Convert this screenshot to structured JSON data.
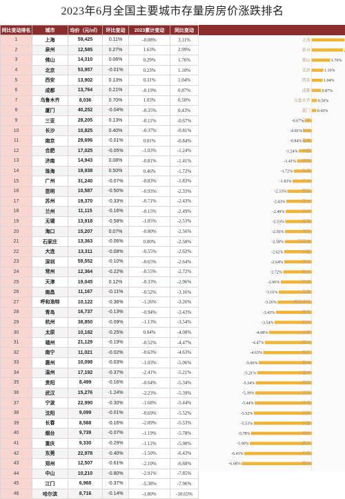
{
  "title": "2023年6月全国主要城市存量房房价涨跌排名",
  "columns": [
    "同比变动排名",
    "城市",
    "均价（元/㎡）",
    "环比变动",
    "2023累计变动",
    "同比变动"
  ],
  "colors": {
    "header_bg": "#8b2d2d",
    "rank_bg": "#f9d6cf",
    "bar": "#f2b233"
  },
  "chart_data": {
    "type": "bar",
    "orientation": "horizontal",
    "title": "2023年6月全国主要城市存量房房价涨跌排名",
    "xlabel": "",
    "ylabel": "",
    "xlim": [
      -10.65,
      3.11
    ],
    "categories": [
      "上海",
      "泉州",
      "佛山",
      "北京",
      "西安",
      "成都",
      "乌鲁木齐",
      "厦门",
      "三亚",
      "长沙",
      "南京",
      "合肥",
      "济南",
      "珠海",
      "广州",
      "昆明",
      "苏州",
      "兰州",
      "无锡",
      "海口",
      "石家庄",
      "大连",
      "深圳",
      "常州",
      "天津",
      "南昌",
      "呼和浩特",
      "青岛",
      "杭州",
      "太原",
      "福州",
      "南宁",
      "惠州",
      "温州",
      "贵阳",
      "武汉",
      "宁波",
      "沈阳",
      "长春",
      "烟台",
      "重庆",
      "东莞",
      "郑州",
      "中山",
      "江门",
      "哈尔滨"
    ],
    "values": [
      3.11,
      2.99,
      1.76,
      1.1,
      1.04,
      0.87,
      0.5,
      0.43,
      -0.67,
      -0.81,
      -0.84,
      -1.24,
      -1.41,
      -1.72,
      -1.83,
      -2.33,
      -2.43,
      -2.49,
      -2.53,
      -2.56,
      -2.58,
      -2.62,
      -2.64,
      -2.72,
      -2.96,
      -3.16,
      -3.26,
      -3.43,
      -3.54,
      -4.08,
      -4.47,
      -4.63,
      -5.06,
      -5.21,
      -5.34,
      -5.39,
      -5.44,
      -5.52,
      -5.53,
      -5.78,
      -5.9,
      -6.43,
      -6.68,
      -7.85,
      -7.96,
      -10.65
    ]
  },
  "rows": [
    {
      "rank": "1",
      "city": "上海",
      "price": "59,425",
      "mom": "0.11%",
      "ytd": "-0.08%",
      "yoy": "3.11%"
    },
    {
      "rank": "2",
      "city": "泉州",
      "price": "12,585",
      "mom": "0.27%",
      "ytd": "1.63%",
      "yoy": "2.99%"
    },
    {
      "rank": "3",
      "city": "佛山",
      "price": "14,310",
      "mom": "0.06%",
      "ytd": "0.29%",
      "yoy": "1.76%"
    },
    {
      "rank": "4",
      "city": "北京",
      "price": "53,957",
      "mom": "-0.01%",
      "ytd": "0.23%",
      "yoy": "1.10%"
    },
    {
      "rank": "5",
      "city": "西安",
      "price": "13,902",
      "mom": "0.13%",
      "ytd": "0.31%",
      "yoy": "1.04%"
    },
    {
      "rank": "6",
      "city": "成都",
      "price": "13,764",
      "mom": "0.21%",
      "ytd": "-0.19%",
      "yoy": "0.87%"
    },
    {
      "rank": "7",
      "city": "乌鲁木齐",
      "price": "8,036",
      "mom": "0.70%",
      "ytd": "1.03%",
      "yoy": "0.50%"
    },
    {
      "rank": "8",
      "city": "厦门",
      "price": "40,252",
      "mom": "-0.04%",
      "ytd": "-0.35%",
      "yoy": "0.43%"
    },
    {
      "rank": "9",
      "city": "三亚",
      "price": "28,205",
      "mom": "0.13%",
      "ytd": "-0.11%",
      "yoy": "-0.67%"
    },
    {
      "rank": "10",
      "city": "长沙",
      "price": "10,825",
      "mom": "0.40%",
      "ytd": "-0.37%",
      "yoy": "-0.81%"
    },
    {
      "rank": "11",
      "city": "南京",
      "price": "29,696",
      "mom": "-0.01%",
      "ytd": "0.01%",
      "yoy": "-0.84%"
    },
    {
      "rank": "12",
      "city": "合肥",
      "price": "17,025",
      "mom": "-0.05%",
      "ytd": "-1.03%",
      "yoy": "-1.24%"
    },
    {
      "rank": "13",
      "city": "济南",
      "price": "14,943",
      "mom": "0.08%",
      "ytd": "-0.81%",
      "yoy": "-1.41%"
    },
    {
      "rank": "14",
      "city": "珠海",
      "price": "19,938",
      "mom": "0.50%",
      "ytd": "0.46%",
      "yoy": "-1.72%"
    },
    {
      "rank": "15",
      "city": "广州",
      "price": "31,240",
      "mom": "-0.07%",
      "ytd": "-0.83%",
      "yoy": "-1.83%"
    },
    {
      "rank": "16",
      "city": "昆明",
      "price": "10,587",
      "mom": "-0.50%",
      "ytd": "-0.93%",
      "yoy": "-2.33%"
    },
    {
      "rank": "17",
      "city": "苏州",
      "price": "19,370",
      "mom": "-0.33%",
      "ytd": "-0.71%",
      "yoy": "-2.43%"
    },
    {
      "rank": "18",
      "city": "兰州",
      "price": "11,115",
      "mom": "-0.16%",
      "ytd": "-0.15%",
      "yoy": "-2.49%"
    },
    {
      "rank": "19",
      "city": "无锡",
      "price": "13,918",
      "mom": "-0.58%",
      "ytd": "-1.05%",
      "yoy": "-2.53%"
    },
    {
      "rank": "20",
      "city": "海口",
      "price": "15,207",
      "mom": "0.07%",
      "ytd": "-0.80%",
      "yoy": "-2.56%"
    },
    {
      "rank": "21",
      "city": "石家庄",
      "price": "13,363",
      "mom": "-0.06%",
      "ytd": "0.00%",
      "yoy": "-2.58%"
    },
    {
      "rank": "22",
      "city": "大连",
      "price": "13,311",
      "mom": "-0.08%",
      "ytd": "-0.55%",
      "yoy": "-2.62%"
    },
    {
      "rank": "23",
      "city": "深圳",
      "price": "59,552",
      "mom": "-0.10%",
      "ytd": "-0.65%",
      "yoy": "-2.64%"
    },
    {
      "rank": "24",
      "city": "常州",
      "price": "12,364",
      "mom": "-0.22%",
      "ytd": "-0.55%",
      "yoy": "-2.72%"
    },
    {
      "rank": "25",
      "city": "天津",
      "price": "19,045",
      "mom": "0.12%",
      "ytd": "-0.33%",
      "yoy": "-2.96%"
    },
    {
      "rank": "26",
      "city": "南昌",
      "price": "11,167",
      "mom": "-0.11%",
      "ytd": "-0.52%",
      "yoy": "-3.16%"
    },
    {
      "rank": "27",
      "city": "呼和浩特",
      "price": "10,122",
      "mom": "-0.36%",
      "ytd": "-1.26%",
      "yoy": "-3.26%"
    },
    {
      "rank": "28",
      "city": "青岛",
      "price": "16,737",
      "mom": "-0.13%",
      "ytd": "-0.94%",
      "yoy": "-3.43%"
    },
    {
      "rank": "29",
      "city": "杭州",
      "price": "38,850",
      "mom": "-0.09%",
      "ytd": "-1.13%",
      "yoy": "-3.54%"
    },
    {
      "rank": "30",
      "city": "太原",
      "price": "10,182",
      "mom": "-0.25%",
      "ytd": "0.04%",
      "yoy": "-4.08%"
    },
    {
      "rank": "31",
      "city": "福州",
      "price": "21,129",
      "mom": "-0.19%",
      "ytd": "-0.52%",
      "yoy": "-4.47%"
    },
    {
      "rank": "32",
      "city": "南宁",
      "price": "11,021",
      "mom": "-0.02%",
      "ytd": "-0.63%",
      "yoy": "-4.63%"
    },
    {
      "rank": "33",
      "city": "惠州",
      "price": "10,098",
      "mom": "-0.03%",
      "ytd": "-1.03%",
      "yoy": "-5.06%"
    },
    {
      "rank": "34",
      "city": "温州",
      "price": "17,192",
      "mom": "-0.37%",
      "ytd": "-2.41%",
      "yoy": "-5.21%"
    },
    {
      "rank": "35",
      "city": "贵阳",
      "price": "8,499",
      "mom": "-0.16%",
      "ytd": "-0.64%",
      "yoy": "-5.34%"
    },
    {
      "rank": "36",
      "city": "武汉",
      "price": "15,276",
      "mom": "-1.24%",
      "ytd": "-2.23%",
      "yoy": "-5.39%"
    },
    {
      "rank": "37",
      "city": "宁波",
      "price": "22,990",
      "mom": "-0.30%",
      "ytd": "-1.68%",
      "yoy": "-5.44%"
    },
    {
      "rank": "38",
      "city": "沈阳",
      "price": "9,099",
      "mom": "-0.01%",
      "ytd": "-0.69%",
      "yoy": "-5.52%"
    },
    {
      "rank": "39",
      "city": "长春",
      "price": "8,568",
      "mom": "-0.16%",
      "ytd": "-2.09%",
      "yoy": "-5.53%"
    },
    {
      "rank": "40",
      "city": "烟台",
      "price": "9,739",
      "mom": "-0.07%",
      "ytd": "-1.19%",
      "yoy": "-5.78%"
    },
    {
      "rank": "41",
      "city": "重庆",
      "price": "9,330",
      "mom": "-0.29%",
      "ytd": "-1.12%",
      "yoy": "-5.90%"
    },
    {
      "rank": "42",
      "city": "东莞",
      "price": "22,978",
      "mom": "-0.40%",
      "ytd": "-1.50%",
      "yoy": "-6.43%"
    },
    {
      "rank": "43",
      "city": "郑州",
      "price": "12,507",
      "mom": "-0.61%",
      "ytd": "-2.10%",
      "yoy": "-6.68%"
    },
    {
      "rank": "44",
      "city": "中山",
      "price": "10,210",
      "mom": "-0.80%",
      "ytd": "-2.91%",
      "yoy": "-7.85%"
    },
    {
      "rank": "45",
      "city": "江门",
      "price": "6,968",
      "mom": "-0.37%",
      "ytd": "-5.38%",
      "yoy": "-7.96%"
    },
    {
      "rank": "46",
      "city": "哈尔滨",
      "price": "8,716",
      "mom": "-0.14%",
      "ytd": "-1.80%",
      "yoy": "-10.65%"
    }
  ]
}
